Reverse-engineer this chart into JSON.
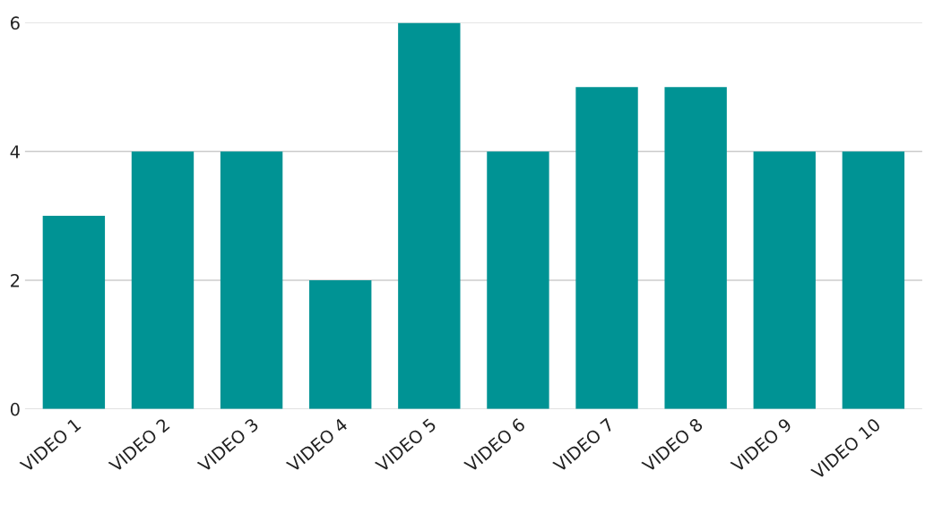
{
  "chart_data": {
    "type": "bar",
    "categories": [
      "VIDEO 1",
      "VIDEO 2",
      "VIDEO 3",
      "VIDEO 4",
      "VIDEO 5",
      "VIDEO 6",
      "VIDEO 7",
      "VIDEO 8",
      "VIDEO 9",
      "VIDEO 10"
    ],
    "values": [
      3,
      4,
      4,
      2,
      6,
      4,
      5,
      5,
      4,
      4
    ],
    "color": "#009394",
    "ylim": [
      0,
      6
    ],
    "yticks": [
      0,
      2,
      4,
      6
    ],
    "grid": "y",
    "legend": false
  }
}
